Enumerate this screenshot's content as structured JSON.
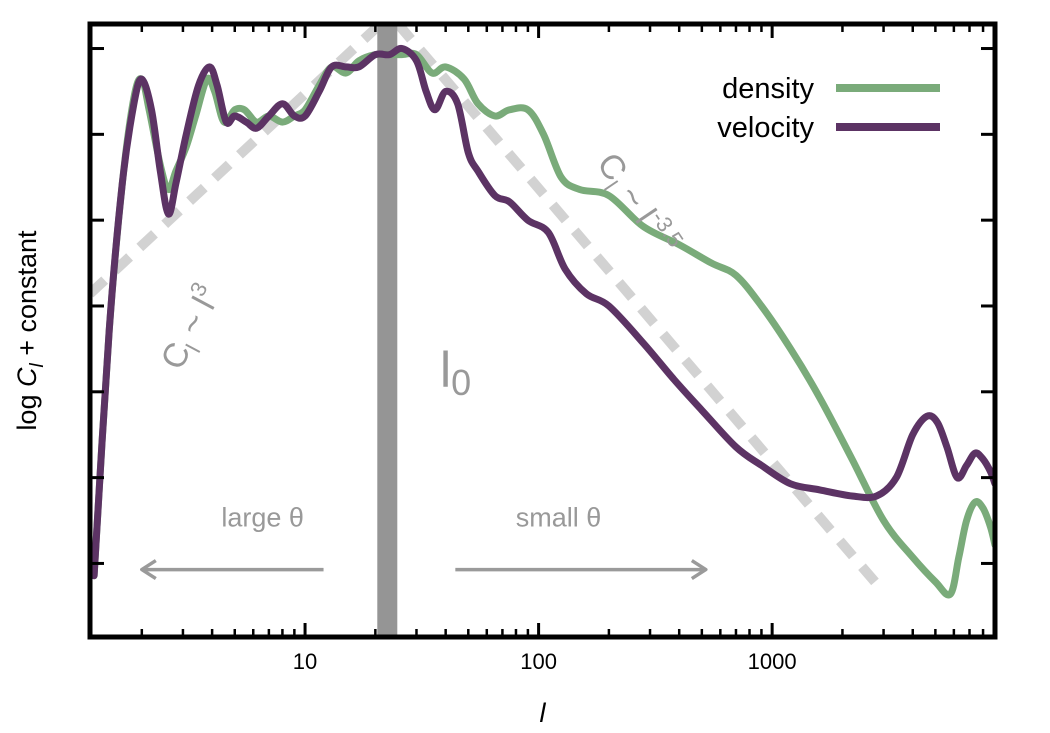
{
  "chart_data": {
    "type": "line",
    "xscale": "log",
    "xlabel": "l",
    "ylabel": "log C_l + constant",
    "ylabel_parts": {
      "prefix": "log ",
      "main": "C",
      "sub": "l",
      "suffix": " + constant"
    },
    "xlim": [
      1.2,
      9000
    ],
    "ylim": [
      0,
      100
    ],
    "x_ticks": [
      {
        "value": 10,
        "label": "10"
      },
      {
        "value": 100,
        "label": "100"
      },
      {
        "value": 1000,
        "label": "1000"
      }
    ],
    "y_ticks": [
      12,
      26,
      40,
      54,
      68,
      82,
      96
    ],
    "legend": {
      "position": "top-right"
    },
    "series": [
      {
        "name": "density",
        "color": "#7aab7a",
        "x": [
          1.25,
          1.45,
          1.65,
          1.85,
          2.0,
          2.15,
          2.4,
          2.6,
          2.8,
          3.1,
          3.4,
          3.8,
          4.1,
          4.5,
          5.0,
          5.5,
          6.2,
          7.0,
          8.0,
          9.0,
          10.0,
          11.5,
          13.0,
          15.0,
          17.0,
          20.0,
          23.0,
          26.0,
          30.0,
          35.0,
          40.0,
          48.0,
          55.0,
          65.0,
          75.0,
          90.0,
          105.0,
          125.0,
          150.0,
          200.0,
          280.0,
          400.0,
          550.0,
          700.0,
          900.0,
          1200.0,
          1600.0,
          2200.0,
          3000.0,
          4000.0,
          5000.0,
          5800.0,
          6300.0,
          6800.0,
          7400.0,
          8000.0,
          8600.0,
          9000.0
        ],
        "y": [
          10,
          50,
          74,
          88,
          91,
          86,
          77,
          73,
          76,
          80,
          85,
          91,
          89,
          84,
          86,
          86,
          84,
          85,
          84,
          85,
          86,
          90,
          93,
          92,
          94,
          95,
          95,
          95,
          95,
          92,
          93,
          91,
          87,
          85,
          86,
          86,
          82,
          75,
          73,
          72,
          67,
          64,
          61,
          59,
          54,
          47,
          39,
          29,
          19,
          13,
          9,
          7,
          13,
          19,
          22,
          21,
          18,
          15
        ]
      },
      {
        "name": "velocity",
        "color": "#5c3364",
        "x": [
          1.25,
          1.45,
          1.65,
          1.85,
          2.0,
          2.2,
          2.4,
          2.6,
          2.8,
          3.1,
          3.5,
          3.9,
          4.2,
          4.6,
          5.0,
          5.6,
          6.2,
          7.0,
          8.0,
          9.0,
          10.0,
          11.5,
          13.0,
          15.0,
          17.0,
          20.0,
          23.0,
          26.0,
          30.0,
          33.0,
          36.0,
          40.0,
          45.0,
          50.0,
          55.0,
          65.0,
          75.0,
          90.0,
          110.0,
          130.0,
          160.0,
          200.0,
          280.0,
          380.0,
          500.0,
          700.0,
          900.0,
          1200.0,
          1600.0,
          2200.0,
          2800.0,
          3400.0,
          4000.0,
          4600.0,
          5100.0,
          5600.0,
          6200.0,
          6800.0,
          7400.0,
          8000.0,
          8600.0,
          9000.0
        ],
        "y": [
          10,
          50,
          74,
          87,
          91,
          86,
          76,
          69,
          74,
          82,
          90,
          93,
          90,
          84,
          85,
          84,
          83,
          85,
          87,
          85,
          85,
          89,
          93,
          93,
          93,
          95,
          95,
          96,
          94,
          89,
          86,
          89,
          87,
          79,
          76,
          72,
          71,
          68,
          66,
          60,
          56,
          54,
          48,
          42,
          37,
          31,
          28,
          25,
          24,
          23,
          23,
          26,
          33,
          36,
          35,
          31,
          26,
          28,
          30,
          29,
          27,
          25
        ]
      }
    ],
    "reference_lines": [
      {
        "name": "C_l ~ l^3",
        "slope": 3,
        "color": "#d2d2d2",
        "x": [
          1.2,
          21.0
        ],
        "y": [
          56,
          100
        ],
        "label_main": "C",
        "label_sub": "l",
        "label_mid": " ~ l",
        "label_sup": "3"
      },
      {
        "name": "C_l ~ l^-3.5",
        "slope": -3.5,
        "color": "#d2d2d2",
        "x": [
          25.0,
          2900.0
        ],
        "y": [
          100,
          8
        ],
        "label_main": "C",
        "label_sub": "l",
        "label_mid": " ~ l",
        "label_sup": "-3.5"
      }
    ],
    "marker": {
      "label": "l",
      "sub": "0",
      "x": 22.5,
      "color": "#959595"
    },
    "annotations": [
      {
        "id": "large",
        "text": "large θ",
        "arrow_from_x": 12.0,
        "arrow_to_x": 2.0,
        "arrow_y": 11
      },
      {
        "id": "small",
        "text": "small θ",
        "arrow_from_x": 44.0,
        "arrow_to_x": 520.0,
        "arrow_y": 11
      }
    ]
  }
}
